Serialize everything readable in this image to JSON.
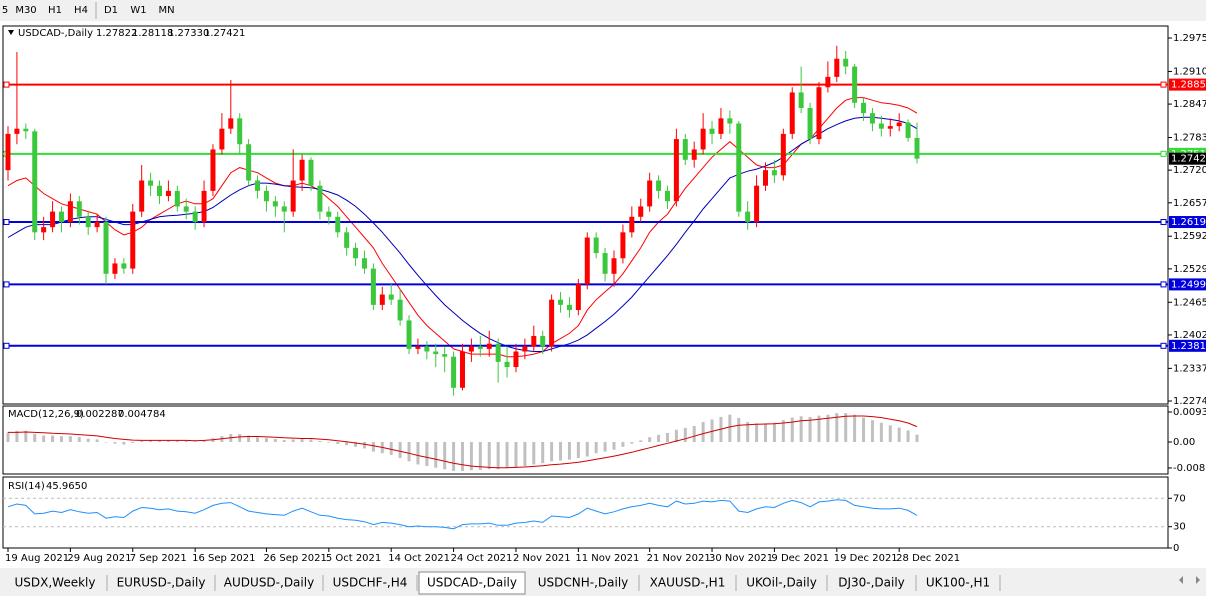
{
  "toolbar": {
    "timeframes": [
      "5",
      "M30",
      "H1",
      "H4",
      "D1",
      "W1",
      "MN"
    ]
  },
  "chart_data": {
    "type": "candlestick",
    "title": "USDCAD-,Daily",
    "ohlc_labels": [
      "1.27822",
      "1.28118",
      "1.27330",
      "1.27421"
    ],
    "up_color": "#ff0000",
    "down_color": "#3cc83c",
    "x": [
      "19 Aug 2021",
      null,
      null,
      null,
      null,
      null,
      null,
      "29 Aug 2021",
      null,
      null,
      null,
      null,
      null,
      null,
      "7 Sep 2021",
      null,
      null,
      null,
      null,
      null,
      null,
      "16 Sep 2021",
      null,
      null,
      null,
      null,
      null,
      null,
      null,
      "26 Sep 2021",
      null,
      null,
      null,
      null,
      null,
      null,
      "5 Oct 2021",
      null,
      null,
      null,
      null,
      null,
      null,
      "14 Oct 2021",
      null,
      null,
      null,
      null,
      null,
      null,
      "24 Oct 2021",
      null,
      null,
      null,
      null,
      null,
      null,
      "2 Nov 2021",
      null,
      null,
      null,
      null,
      null,
      null,
      "11 Nov 2021",
      null,
      null,
      null,
      null,
      null,
      null,
      null,
      "21 Nov 2021",
      null,
      null,
      null,
      null,
      null,
      null,
      "30 Nov 2021",
      null,
      null,
      null,
      null,
      null,
      null,
      "9 Dec 2021",
      null,
      null,
      null,
      null,
      null,
      null,
      "19 Dec 2021",
      null,
      null,
      null,
      null,
      null,
      null,
      "28 Dec 2021",
      null,
      null
    ],
    "open": [
      1.272,
      1.279,
      1.28,
      1.2795,
      1.26,
      1.261,
      1.264,
      1.262,
      1.266,
      1.263,
      1.261,
      1.262,
      1.252,
      1.254,
      1.253,
      1.264,
      1.27,
      1.269,
      1.267,
      1.268,
      1.265,
      1.264,
      1.262,
      1.268,
      1.276,
      1.28,
      1.282,
      1.277,
      1.27,
      1.268,
      1.266,
      1.265,
      1.264,
      1.27,
      1.274,
      1.269,
      1.264,
      1.263,
      1.26,
      1.257,
      1.255,
      1.253,
      1.246,
      1.248,
      1.247,
      1.243,
      1.2375,
      1.238,
      1.237,
      1.2365,
      1.236,
      1.23,
      1.237,
      1.238,
      1.2375,
      1.2385,
      1.235,
      1.234,
      1.237,
      1.238,
      1.24,
      1.238,
      1.247,
      1.246,
      1.245,
      1.25,
      1.259,
      1.256,
      1.252,
      1.255,
      1.26,
      1.263,
      1.265,
      1.27,
      1.268,
      1.266,
      1.278,
      1.274,
      1.276,
      1.28,
      1.279,
      1.282,
      1.281,
      1.264,
      1.262,
      1.269,
      1.272,
      1.271,
      1.279,
      1.287,
      1.284,
      1.278,
      1.288,
      1.29,
      1.2935,
      1.292,
      1.285,
      1.283,
      1.281,
      1.28,
      1.2805,
      1.2812,
      1.27822
    ],
    "high": [
      1.2805,
      1.2948,
      1.281,
      1.28,
      1.263,
      1.266,
      1.265,
      1.2675,
      1.267,
      1.264,
      1.2635,
      1.263,
      1.255,
      1.255,
      1.2655,
      1.273,
      1.2715,
      1.27,
      1.27,
      1.269,
      1.2665,
      1.265,
      1.27,
      1.277,
      1.283,
      1.2894,
      1.283,
      1.278,
      1.271,
      1.269,
      1.267,
      1.266,
      1.276,
      1.275,
      1.2745,
      1.27,
      1.265,
      1.264,
      1.261,
      1.258,
      1.2565,
      1.254,
      1.2495,
      1.25,
      1.249,
      1.244,
      1.2395,
      1.239,
      1.2385,
      1.238,
      1.237,
      1.2385,
      1.2395,
      1.24,
      1.241,
      1.2395,
      1.238,
      1.2385,
      1.2395,
      1.242,
      1.241,
      1.248,
      1.2485,
      1.2475,
      1.251,
      1.26,
      1.26,
      1.257,
      1.2565,
      1.2615,
      1.265,
      1.2665,
      1.2715,
      1.271,
      1.269,
      1.28,
      1.279,
      1.2775,
      1.283,
      1.2815,
      1.284,
      1.2835,
      1.2815,
      1.266,
      1.271,
      1.2735,
      1.274,
      1.28,
      1.288,
      1.292,
      1.285,
      1.289,
      1.293,
      1.296,
      1.295,
      1.2925,
      1.286,
      1.284,
      1.2825,
      1.282,
      1.283,
      1.2818,
      1.28118
    ],
    "low": [
      1.27,
      1.277,
      1.278,
      1.2585,
      1.2585,
      1.26,
      1.26,
      1.261,
      1.2615,
      1.2595,
      1.26,
      1.25,
      1.251,
      1.252,
      1.252,
      1.263,
      1.267,
      1.2655,
      1.266,
      1.264,
      1.2625,
      1.2605,
      1.261,
      1.267,
      1.275,
      1.279,
      1.275,
      1.269,
      1.2665,
      1.264,
      1.263,
      1.26,
      1.263,
      1.268,
      1.268,
      1.2625,
      1.2615,
      1.259,
      1.2555,
      1.2535,
      1.252,
      1.245,
      1.245,
      1.246,
      1.242,
      1.2365,
      1.2365,
      1.2355,
      1.234,
      1.233,
      1.2285,
      1.2295,
      1.235,
      1.236,
      1.236,
      1.231,
      1.232,
      1.233,
      1.2355,
      1.237,
      1.2365,
      1.237,
      1.2445,
      1.2435,
      1.244,
      1.249,
      1.255,
      1.2505,
      1.2495,
      1.254,
      1.259,
      1.262,
      1.264,
      1.2665,
      1.2645,
      1.265,
      1.273,
      1.2725,
      1.275,
      1.277,
      1.278,
      1.279,
      1.263,
      1.2605,
      1.261,
      1.268,
      1.2695,
      1.27,
      1.278,
      1.283,
      1.277,
      1.277,
      1.287,
      1.289,
      1.2905,
      1.284,
      1.2815,
      1.2795,
      1.2785,
      1.2785,
      1.2795,
      1.2775,
      1.2733
    ],
    "close": [
      1.279,
      1.28,
      1.2795,
      1.26,
      1.261,
      1.264,
      1.262,
      1.266,
      1.263,
      1.261,
      1.262,
      1.252,
      1.254,
      1.253,
      1.264,
      1.27,
      1.269,
      1.267,
      1.268,
      1.265,
      1.264,
      1.262,
      1.268,
      1.276,
      1.28,
      1.282,
      1.277,
      1.27,
      1.268,
      1.266,
      1.265,
      1.264,
      1.27,
      1.274,
      1.269,
      1.264,
      1.263,
      1.26,
      1.257,
      1.255,
      1.253,
      1.246,
      1.248,
      1.247,
      1.243,
      1.2375,
      1.238,
      1.237,
      1.2365,
      1.236,
      1.23,
      1.237,
      1.238,
      1.2375,
      1.2385,
      1.235,
      1.234,
      1.237,
      1.238,
      1.24,
      1.238,
      1.247,
      1.246,
      1.245,
      1.25,
      1.259,
      1.256,
      1.252,
      1.255,
      1.26,
      1.263,
      1.265,
      1.27,
      1.268,
      1.266,
      1.278,
      1.274,
      1.276,
      1.28,
      1.279,
      1.282,
      1.281,
      1.264,
      1.262,
      1.269,
      1.272,
      1.271,
      1.279,
      1.287,
      1.284,
      1.278,
      1.288,
      1.29,
      1.2935,
      1.292,
      1.285,
      1.283,
      1.281,
      1.28,
      1.2805,
      1.2812,
      1.27822,
      1.27421
    ],
    "moving_averages": [
      {
        "color": "#ff0000",
        "values": [
          1.269,
          1.27,
          1.2705,
          1.269,
          1.2675,
          1.2665,
          1.2655,
          1.265,
          1.2645,
          1.264,
          1.2635,
          1.262,
          1.2605,
          1.2595,
          1.26,
          1.261,
          1.2625,
          1.2635,
          1.2645,
          1.2655,
          1.266,
          1.2655,
          1.2655,
          1.2665,
          1.269,
          1.2715,
          1.2725,
          1.272,
          1.2715,
          1.2705,
          1.2695,
          1.269,
          1.269,
          1.2695,
          1.269,
          1.268,
          1.2665,
          1.265,
          1.263,
          1.261,
          1.259,
          1.257,
          1.254,
          1.2515,
          1.249,
          1.2465,
          1.244,
          1.242,
          1.2405,
          1.239,
          1.2375,
          1.237,
          1.2365,
          1.2365,
          1.2365,
          1.2365,
          1.236,
          1.236,
          1.2362,
          1.2365,
          1.237,
          1.2385,
          1.2395,
          1.2405,
          1.242,
          1.245,
          1.247,
          1.2485,
          1.25,
          1.252,
          1.2545,
          1.257,
          1.26,
          1.262,
          1.2635,
          1.266,
          1.2685,
          1.2705,
          1.2725,
          1.2745,
          1.276,
          1.2775,
          1.276,
          1.2745,
          1.273,
          1.2725,
          1.2725,
          1.273,
          1.275,
          1.277,
          1.278,
          1.28,
          1.282,
          1.284,
          1.2855,
          1.286,
          1.286,
          1.2855,
          1.285,
          1.2848,
          1.2845,
          1.284,
          1.283
        ]
      },
      {
        "color": "#0000b4",
        "values": [
          1.259,
          1.26,
          1.261,
          1.2615,
          1.2615,
          1.2615,
          1.262,
          1.2625,
          1.2628,
          1.263,
          1.263,
          1.2625,
          1.262,
          1.2615,
          1.2615,
          1.262,
          1.2625,
          1.263,
          1.2632,
          1.2633,
          1.2635,
          1.2637,
          1.264,
          1.2648,
          1.266,
          1.2672,
          1.2682,
          1.269,
          1.2695,
          1.2695,
          1.2693,
          1.269,
          1.2688,
          1.2687,
          1.2686,
          1.2683,
          1.2678,
          1.2672,
          1.2662,
          1.265,
          1.2635,
          1.2618,
          1.26,
          1.258,
          1.256,
          1.2538,
          1.2517,
          1.2497,
          1.2478,
          1.246,
          1.2445,
          1.243,
          1.2417,
          1.2405,
          1.2395,
          1.2387,
          1.238,
          1.2375,
          1.2372,
          1.237,
          1.237,
          1.2375,
          1.238,
          1.2385,
          1.2392,
          1.2402,
          1.2415,
          1.2428,
          1.2442,
          1.2458,
          1.2475,
          1.2495,
          1.2515,
          1.2535,
          1.2555,
          1.2577,
          1.26,
          1.2622,
          1.2645,
          1.2665,
          1.2685,
          1.2705,
          1.2712,
          1.2718,
          1.2722,
          1.2728,
          1.2735,
          1.2745,
          1.2758,
          1.277,
          1.278,
          1.279,
          1.28,
          1.2808,
          1.2815,
          1.282,
          1.2822,
          1.2822,
          1.282,
          1.2818,
          1.2815,
          1.281,
          1.28
        ]
      }
    ],
    "ylim": [
      1.22687,
      1.29982
    ],
    "yticks": [
      {
        "value": 1.2975,
        "label": "1.29750"
      },
      1.29105,
      1.28475,
      {
        "value": 1.2783,
        "label": "1.27830"
      },
      {
        "value": 1.272,
        "label": "1.27200"
      },
      {
        "value": 1.2657,
        "label": "1.26570"
      },
      1.25925,
      1.25295,
      {
        "value": 1.2465,
        "label": "1.24650"
      },
      {
        "value": 1.2402,
        "label": "1.24020"
      },
      1.23375,
      1.22745
    ],
    "levels": [
      {
        "value": 1.28851,
        "color": "#ff0000"
      },
      {
        "value": 1.27515,
        "color": "#33dd33"
      },
      {
        "value": 1.26199,
        "color": "#0000dd"
      },
      {
        "value": 1.24995,
        "color": "#0000dd"
      },
      {
        "value": 1.2381,
        "label": "1.23810",
        "color": "#0000dd"
      }
    ],
    "macd": {
      "name": "MACD(12,26,9)",
      "hist_color": "#c0c0c0",
      "signal_color": "#d00000",
      "values": [
        0.003,
        0.0035,
        0.0035,
        0.0025,
        0.002,
        0.002,
        0.0018,
        0.0018,
        0.0015,
        0.001,
        0.0008,
        0.0,
        -0.0005,
        -0.0008,
        -0.0003,
        0.0003,
        0.0005,
        0.0005,
        0.0005,
        0.0004,
        0.0003,
        0.0002,
        0.0006,
        0.0012,
        0.0018,
        0.0025,
        0.0025,
        0.002,
        0.0015,
        0.0012,
        0.0009,
        0.0006,
        0.0008,
        0.001,
        0.0008,
        0.0003,
        -0.0002,
        -0.0006,
        -0.001,
        -0.0015,
        -0.002,
        -0.003,
        -0.0035,
        -0.004,
        -0.005,
        -0.006,
        -0.007,
        -0.0075,
        -0.008,
        -0.0085,
        -0.009,
        -0.009,
        -0.0088,
        -0.0087,
        -0.0085,
        -0.0085,
        -0.0082,
        -0.008,
        -0.0075,
        -0.007,
        -0.0066,
        -0.006,
        -0.0058,
        -0.0055,
        -0.005,
        -0.0045,
        -0.0035,
        -0.003,
        -0.0024,
        -0.0015,
        -0.0005,
        0.0005,
        0.0015,
        0.0022,
        0.0028,
        0.0038,
        0.0044,
        0.005,
        0.0062,
        0.007,
        0.0078,
        0.0085,
        0.0075,
        0.0062,
        0.0058,
        0.0058,
        0.006,
        0.0068,
        0.0076,
        0.008,
        0.0078,
        0.0082,
        0.0085,
        0.009,
        0.009,
        0.0085,
        0.0076,
        0.0068,
        0.006,
        0.0052,
        0.0045,
        0.0036,
        0.002287
      ],
      "signal": [
        0.003,
        0.003,
        0.0031,
        0.003,
        0.0029,
        0.0027,
        0.0026,
        0.0025,
        0.0023,
        0.0021,
        0.0019,
        0.0015,
        0.0011,
        0.0008,
        0.0006,
        0.0005,
        0.0005,
        0.0005,
        0.0005,
        0.0005,
        0.0005,
        0.0004,
        0.0005,
        0.0007,
        0.001,
        0.0013,
        0.0016,
        0.0017,
        0.0017,
        0.0016,
        0.0015,
        0.0013,
        0.0012,
        0.0011,
        0.0011,
        0.0009,
        0.0007,
        0.0004,
        0.0001,
        -0.0003,
        -0.0007,
        -0.0012,
        -0.0017,
        -0.0023,
        -0.0029,
        -0.0035,
        -0.0042,
        -0.0048,
        -0.0054,
        -0.006,
        -0.0066,
        -0.0071,
        -0.0075,
        -0.0077,
        -0.0079,
        -0.008,
        -0.008,
        -0.0079,
        -0.0078,
        -0.0076,
        -0.0074,
        -0.0071,
        -0.0069,
        -0.0066,
        -0.0063,
        -0.0059,
        -0.0054,
        -0.0049,
        -0.0044,
        -0.0038,
        -0.0032,
        -0.0025,
        -0.0018,
        -0.0011,
        -0.0004,
        0.0003,
        0.001,
        0.0018,
        0.0026,
        0.0033,
        0.004,
        0.0047,
        0.0052,
        0.0054,
        0.0055,
        0.0056,
        0.0057,
        0.0059,
        0.0062,
        0.0066,
        0.0068,
        0.0071,
        0.0074,
        0.0077,
        0.008,
        0.0081,
        0.0081,
        0.0079,
        0.0076,
        0.0071,
        0.0066,
        0.0059,
        0.004784
      ],
      "ylim": [
        -0.00997,
        0.01121
      ],
      "yticks": [
        0.009345,
        {
          "value": 0,
          "label": "0.00"
        },
        -0.00809
      ]
    },
    "rsi": {
      "name": "RSI(14)",
      "color": "#1e90ff",
      "value_label": "45.9650",
      "values": [
        58,
        62,
        60,
        48,
        49,
        52,
        50,
        54,
        51,
        49,
        50,
        42,
        44,
        43,
        52,
        57,
        56,
        54,
        55,
        52,
        51,
        49,
        54,
        60,
        63,
        64,
        58,
        52,
        50,
        48,
        47,
        46,
        52,
        56,
        51,
        46,
        45,
        42,
        40,
        39,
        37,
        33,
        36,
        35,
        33,
        30,
        31,
        30,
        30,
        29,
        27,
        33,
        34,
        34,
        35,
        32,
        32,
        35,
        36,
        38,
        36,
        45,
        44,
        43,
        48,
        56,
        52,
        48,
        51,
        55,
        58,
        60,
        63,
        60,
        58,
        66,
        62,
        63,
        66,
        65,
        67,
        66,
        52,
        50,
        55,
        58,
        57,
        63,
        67,
        64,
        58,
        65,
        66,
        68,
        67,
        60,
        58,
        56,
        55,
        55,
        56,
        53,
        45.965
      ],
      "ylim": [
        0,
        100
      ],
      "yticks": [
        70,
        30,
        0
      ],
      "levels": [
        70,
        30
      ]
    }
  },
  "tabs": {
    "items": [
      "USDX,Weekly",
      "EURUSD-,Daily",
      "AUDUSD-,Daily",
      "USDCHF-,H4",
      "USDCAD-,Daily",
      "USDCNH-,Daily",
      "XAUUSD-,H1",
      "UKOil-,Daily",
      "DJ30-,Daily",
      "UK100-,H1"
    ],
    "active": 4
  }
}
